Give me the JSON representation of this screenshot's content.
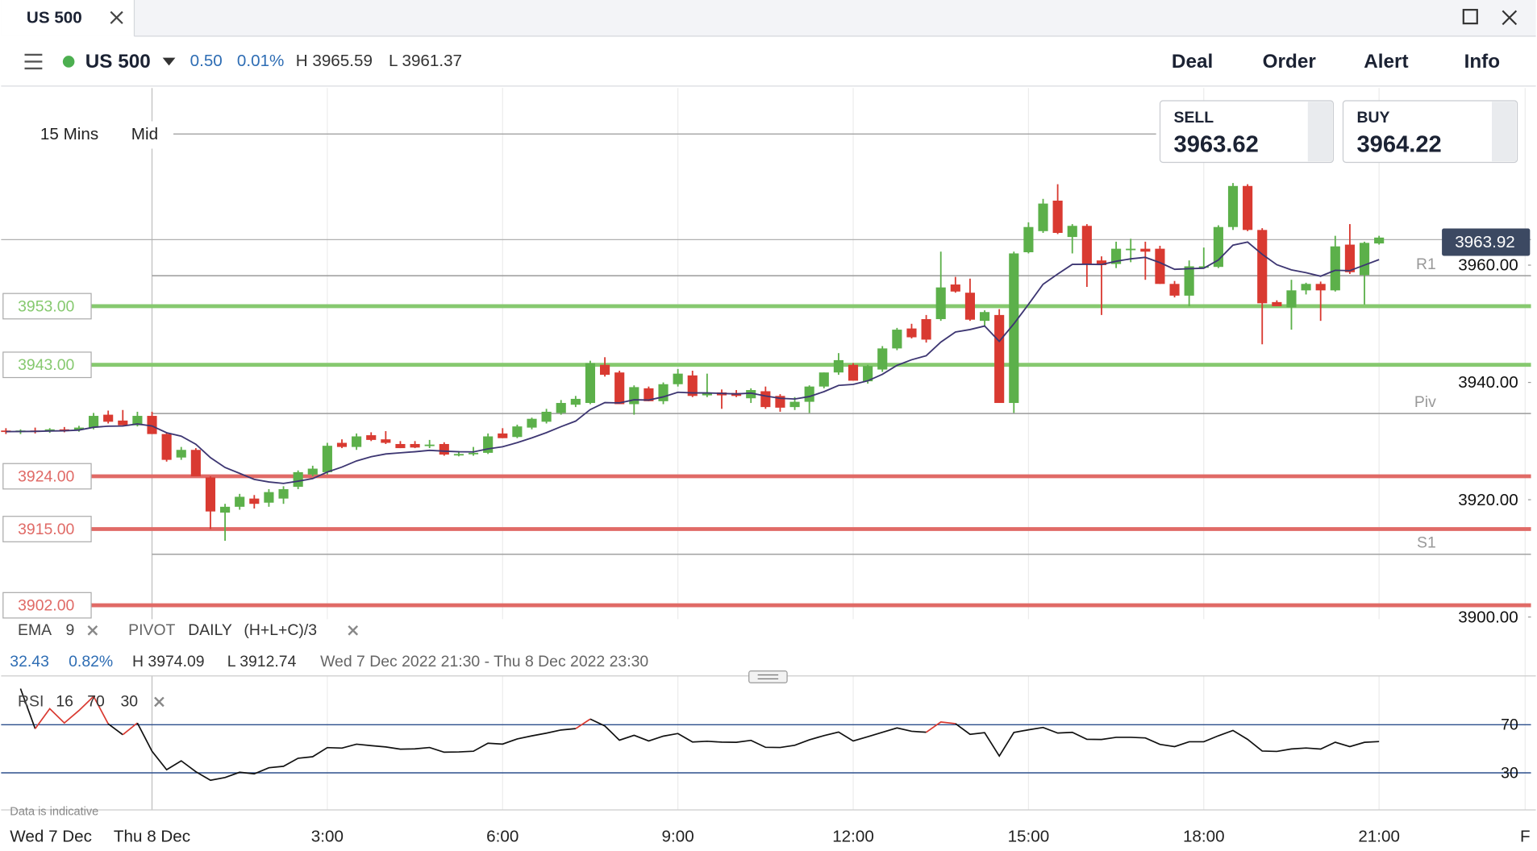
{
  "tab": {
    "title": "US 500"
  },
  "toolbar": {
    "instrument": "US 500",
    "change": "0.50",
    "change_pct": "0.01%",
    "high": "H 3965.59",
    "low": "L 3961.37",
    "buttons": [
      "Deal",
      "Order",
      "Alert",
      "Info"
    ]
  },
  "chart_data": {
    "type": "candlestick",
    "interval": "15 Mins",
    "price_type": "Mid",
    "open": [
      3931.8,
      3931.6,
      3931.8,
      3931.7,
      3932.0,
      3931.9,
      3932.3,
      3934.5,
      3933.5,
      3932.7,
      3934.3,
      3931.2,
      3927.2,
      3928.5,
      3923.8,
      3917.8,
      3918.8,
      3920.2,
      3919.5,
      3920.2,
      3922.2,
      3924.3,
      3924.7,
      3929.7,
      3929.0,
      3931.0,
      3930.3,
      3929.5,
      3929.5,
      3929.2,
      3929.5,
      3927.7,
      3927.8,
      3928.0,
      3931.3,
      3930.7,
      3932.3,
      3933.3,
      3934.8,
      3936.2,
      3936.5,
      3943.0,
      3941.7,
      3936.3,
      3939.0,
      3936.8,
      3939.7,
      3941.2,
      3937.8,
      3938.3,
      3938.2,
      3937.3,
      3938.5,
      3937.7,
      3935.8,
      3936.7,
      3939.3,
      3941.7,
      3943.0,
      3940.2,
      3942.2,
      3945.8,
      3949.2,
      3950.8,
      3950.8,
      3956.7,
      3955.3,
      3950.5,
      3951.5,
      3936.5,
      3962.2,
      3965.8,
      3971.0,
      3964.8,
      3966.7,
      3960.8,
      3960.2,
      3962.8,
      3962.8,
      3962.8,
      3956.8,
      3954.8,
      3959.7,
      3959.7,
      3966.5,
      3973.5,
      3966.0,
      3953.7,
      3952.8,
      3955.7,
      3956.8,
      3955.7,
      3963.5,
      3958.3,
      3963.7
    ],
    "high": [
      3932.2,
      3932.0,
      3932.3,
      3932.2,
      3932.4,
      3932.6,
      3934.8,
      3935.2,
      3935.3,
      3935.0,
      3935.0,
      3931.5,
      3929.0,
      3928.8,
      3924.0,
      3919.3,
      3921.0,
      3920.8,
      3921.8,
      3922.3,
      3925.0,
      3925.8,
      3929.7,
      3930.3,
      3931.3,
      3931.5,
      3931.7,
      3930.0,
      3930.0,
      3930.2,
      3929.8,
      3928.3,
      3929.0,
      3931.3,
      3932.2,
      3932.8,
      3934.0,
      3935.5,
      3937.0,
      3937.7,
      3943.7,
      3944.3,
      3942.0,
      3939.5,
      3939.3,
      3940.0,
      3942.3,
      3942.0,
      3941.5,
      3938.8,
      3938.7,
      3939.0,
      3939.3,
      3938.0,
      3937.5,
      3939.5,
      3941.7,
      3945.0,
      3943.3,
      3943.0,
      3946.2,
      3949.3,
      3950.0,
      3951.5,
      3962.3,
      3958.0,
      3957.7,
      3952.3,
      3952.5,
      3962.3,
      3967.3,
      3971.3,
      3973.8,
      3967.0,
      3967.0,
      3961.5,
      3964.0,
      3964.5,
      3964.0,
      3963.3,
      3957.3,
      3960.8,
      3963.0,
      3966.8,
      3974.0,
      3973.8,
      3966.3,
      3954.0,
      3957.5,
      3957.0,
      3957.2,
      3965.0,
      3967.0,
      3964.0,
      3965.0
    ],
    "low": [
      3931.2,
      3931.2,
      3931.3,
      3931.4,
      3931.5,
      3931.6,
      3932.0,
      3933.0,
      3932.7,
      3932.5,
      3931.2,
      3926.5,
      3926.8,
      3924.0,
      3915.0,
      3913.0,
      3918.3,
      3918.5,
      3918.8,
      3919.3,
      3921.8,
      3924.0,
      3924.3,
      3928.8,
      3928.5,
      3930.0,
      3929.5,
      3928.8,
      3928.8,
      3928.8,
      3927.5,
      3927.4,
      3927.5,
      3927.8,
      3930.5,
      3930.5,
      3932.0,
      3933.0,
      3934.5,
      3935.8,
      3936.3,
      3941.0,
      3936.3,
      3934.5,
      3936.8,
      3936.3,
      3939.3,
      3937.5,
      3937.5,
      3935.5,
      3937.5,
      3936.5,
      3935.5,
      3935.0,
      3935.3,
      3934.8,
      3939.0,
      3941.3,
      3940.3,
      3939.8,
      3941.8,
      3945.5,
      3947.5,
      3946.8,
      3950.5,
      3955.3,
      3950.5,
      3949.5,
      3936.5,
      3934.8,
      3962.0,
      3965.5,
      3965.3,
      3962.0,
      3956.3,
      3951.5,
      3959.5,
      3960.5,
      3957.5,
      3956.8,
      3954.5,
      3953.0,
      3959.5,
      3959.5,
      3966.0,
      3965.8,
      3946.5,
      3953.0,
      3949.0,
      3955.0,
      3950.5,
      3955.5,
      3958.5,
      3953.3,
      3963.5
    ],
    "close": [
      3931.6,
      3931.8,
      3931.7,
      3932.0,
      3931.9,
      3932.3,
      3934.3,
      3933.3,
      3932.7,
      3934.3,
      3931.2,
      3926.8,
      3928.5,
      3924.0,
      3918.0,
      3918.8,
      3920.5,
      3919.3,
      3921.3,
      3921.8,
      3924.7,
      3925.3,
      3929.2,
      3929.0,
      3930.8,
      3930.2,
      3929.7,
      3928.8,
      3928.9,
      3929.4,
      3927.7,
      3927.8,
      3928.0,
      3930.8,
      3930.5,
      3932.5,
      3933.8,
      3935.0,
      3936.5,
      3937.2,
      3943.3,
      3941.3,
      3936.3,
      3939.2,
      3936.8,
      3939.7,
      3941.5,
      3937.7,
      3938.2,
      3937.8,
      3937.7,
      3938.7,
      3935.8,
      3935.7,
      3936.7,
      3939.3,
      3941.7,
      3943.8,
      3940.3,
      3942.8,
      3945.8,
      3949.0,
      3947.7,
      3947.3,
      3956.2,
      3955.5,
      3950.7,
      3952.0,
      3936.5,
      3962.0,
      3966.5,
      3970.5,
      3965.5,
      3966.7,
      3960.2,
      3960.0,
      3962.8,
      3962.8,
      3962.3,
      3956.8,
      3954.8,
      3959.8,
      3959.8,
      3966.5,
      3973.5,
      3966.0,
      3953.5,
      3953.0,
      3955.7,
      3956.8,
      3955.7,
      3963.2,
      3958.8,
      3963.8,
      3964.7
    ],
    "up_color": "#5cb04a",
    "down_color": "#d93a31",
    "ylim": [
      3899.8,
      3990.2
    ],
    "yticks": [
      {
        "value": 3960,
        "label": "3960.00"
      },
      {
        "value": 3940,
        "label": "3940.00"
      },
      {
        "value": 3920,
        "label": "3920.00"
      },
      {
        "value": 3900,
        "label": "3900.00"
      }
    ],
    "xlim": [
      -0.33,
      104.4
    ],
    "xticks": [
      {
        "value": 10,
        "label": "Thu 8 Dec"
      },
      {
        "value": 22,
        "label": "3:00"
      },
      {
        "value": 34,
        "label": "6:00"
      },
      {
        "value": 46,
        "label": "9:00"
      },
      {
        "value": 58,
        "label": "12:00"
      },
      {
        "value": 70,
        "label": "15:00"
      },
      {
        "value": 82,
        "label": "18:00"
      },
      {
        "value": 94,
        "label": "21:00"
      },
      {
        "value": 104,
        "label": "F"
      }
    ],
    "start_label": "Wed 7 Dec",
    "sell": {
      "label": "SELL",
      "price": "3963.62"
    },
    "buy": {
      "label": "BUY",
      "price": "3964.22"
    },
    "last_price": {
      "value": 3963.92,
      "label": "3963.92"
    },
    "levels": [
      {
        "value": 3953,
        "label": "3953.00",
        "color": "#86c96f"
      },
      {
        "value": 3943,
        "label": "3943.00",
        "color": "#86c96f"
      },
      {
        "value": 3924,
        "label": "3924.00",
        "color": "#e06a66"
      },
      {
        "value": 3915,
        "label": "3915.00",
        "color": "#e06a66"
      },
      {
        "value": 3902,
        "label": "3902.00",
        "color": "#e06a66"
      }
    ],
    "pivots": [
      {
        "name": "R1",
        "value": 3958.2
      },
      {
        "name": "Piv",
        "value": 3934.7
      },
      {
        "name": "S1",
        "value": 3910.7
      }
    ],
    "ema": {
      "label": "EMA",
      "period": 9,
      "color": "#3d3672"
    },
    "pivot": {
      "label": "PIVOT",
      "period": "DAILY",
      "formula": "(H+L+C)/3"
    },
    "stats": {
      "change": "32.43",
      "change_pct": "0.82%",
      "high": "H 3974.09",
      "low": "L 3912.74",
      "range": "Wed 7 Dec 2022 21:30 - Thu 8 Dec 2022 23:30"
    },
    "rsi": {
      "label": "RSI",
      "period": 16,
      "upper": 70,
      "lower": 30,
      "ylim": [
        0,
        100
      ],
      "yticks": [
        70,
        30
      ],
      "color": "#111111",
      "band_color": "#2b4e8c",
      "over_color": "#d93a31"
    },
    "note": "Data is indicative"
  }
}
